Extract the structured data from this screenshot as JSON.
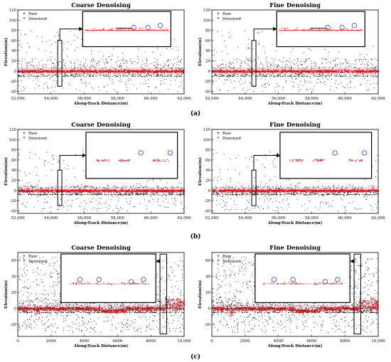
{
  "figure": {
    "panel_labels": [
      "(a)",
      "(b)",
      "(c)"
    ]
  },
  "colors": {
    "raw": "#000000",
    "denoised": "#e01010",
    "highlight": "#2a3bd6",
    "band": "#f6b3c8"
  },
  "chart_data": [
    {
      "id": "a-coarse",
      "type": "scatter",
      "title": "Coarse Denoising",
      "xlabel": "Along-Track Distance(m)",
      "ylabel": "Elevation(m)",
      "xlim": [
        52000,
        62000
      ],
      "ylim": [
        -45,
        120
      ],
      "xticks": [
        "52,000",
        "54,000",
        "56,000",
        "58,000",
        "60,000",
        "62,000"
      ],
      "yticks": [
        "-40",
        "-20",
        "0",
        "20",
        "40",
        "60",
        "80",
        "100",
        "120"
      ],
      "legend": [
        "Raw",
        "Denoised"
      ],
      "series": [
        {
          "name": "Raw",
          "noise_level": 0,
          "noise_range": [
            -40,
            80
          ],
          "dense_range": [
            -10,
            25
          ]
        },
        {
          "name": "Denoised",
          "level": 0
        }
      ]
    },
    {
      "id": "a-fine",
      "type": "scatter",
      "title": "Fine Denoising",
      "xlabel": "Along-Track Distance(m)",
      "ylabel": "Elevation(m)",
      "xlim": [
        52000,
        62000
      ],
      "ylim": [
        -45,
        120
      ],
      "xticks": [
        "52,000",
        "54,000",
        "56,000",
        "58,000",
        "60,000",
        "62,000"
      ],
      "yticks": [
        "-40",
        "-20",
        "0",
        "20",
        "40",
        "60",
        "80",
        "100",
        "120"
      ],
      "legend": [
        "Raw",
        "Denoised"
      ],
      "series": [
        {
          "name": "Raw",
          "noise_level": 0,
          "noise_range": [
            -40,
            80
          ],
          "dense_range": [
            -10,
            25
          ]
        },
        {
          "name": "Denoised",
          "level": 0
        }
      ]
    },
    {
      "id": "b-coarse",
      "type": "scatter",
      "title": "Coarse Denoising",
      "xlabel": "Along-Track Distance(m)",
      "ylabel": "Elevation(m)",
      "xlim": [
        52000,
        62000
      ],
      "ylim": [
        -45,
        120
      ],
      "xticks": [
        "52,000",
        "54,000",
        "56,000",
        "58,000",
        "60,000",
        "62,000"
      ],
      "yticks": [
        "-40",
        "-20",
        "0",
        "20",
        "40",
        "60",
        "80",
        "100",
        "120"
      ],
      "legend": [
        "Raw",
        "Denoised"
      ],
      "series": [
        {
          "name": "Raw",
          "noise_level": 0,
          "noise_range": [
            -40,
            80
          ],
          "dense_range": [
            -8,
            10
          ]
        },
        {
          "name": "Denoised",
          "level": 0
        }
      ]
    },
    {
      "id": "b-fine",
      "type": "scatter",
      "title": "Fine Denoising",
      "xlabel": "Along-Track Distance(m)",
      "ylabel": "Elevation(m)",
      "xlim": [
        52000,
        62000
      ],
      "ylim": [
        -45,
        120
      ],
      "xticks": [
        "52,000",
        "54,000",
        "56,000",
        "58,000",
        "60,000",
        "62,000"
      ],
      "yticks": [
        "-40",
        "-20",
        "0",
        "20",
        "40",
        "60",
        "80",
        "100",
        "120"
      ],
      "legend": [
        "Raw",
        "Denoised"
      ],
      "series": [
        {
          "name": "Raw",
          "noise_level": 0,
          "noise_range": [
            -40,
            80
          ],
          "dense_range": [
            -8,
            10
          ]
        },
        {
          "name": "Denoised",
          "level": 0
        }
      ]
    },
    {
      "id": "c-coarse",
      "type": "scatter",
      "title": "Coarse Denoising",
      "xlabel": "Along-Track Distance(m)",
      "ylabel": "Elevation(m)",
      "xlim": [
        0,
        10000
      ],
      "ylim": [
        -35,
        70
      ],
      "xticks": [
        "0",
        "2000",
        "4000",
        "6000",
        "8000",
        "10,000"
      ],
      "yticks": [
        "-20",
        "0",
        "20",
        "40",
        "60"
      ],
      "legend": [
        "Raw",
        "Denoised"
      ],
      "series": [
        {
          "name": "Raw",
          "noise_level": 0,
          "noise_range": [
            -30,
            65
          ],
          "dense_range": [
            -5,
            12
          ]
        },
        {
          "name": "Denoised",
          "level": 0
        }
      ]
    },
    {
      "id": "c-fine",
      "type": "scatter",
      "title": "Fine Denoising",
      "xlabel": "Along-Track Distance(m)",
      "ylabel": "Elevation(m)",
      "xlim": [
        0,
        10000
      ],
      "ylim": [
        -35,
        70
      ],
      "xticks": [
        "0",
        "2000",
        "4000",
        "6000",
        "8000",
        "10,000"
      ],
      "yticks": [
        "-20",
        "0",
        "20",
        "40",
        "60"
      ],
      "legend": [
        "Raw",
        "Denoised"
      ],
      "series": [
        {
          "name": "Raw",
          "noise_level": 0,
          "noise_range": [
            -30,
            65
          ],
          "dense_range": [
            -5,
            12
          ]
        },
        {
          "name": "Denoised",
          "level": 0
        }
      ]
    }
  ]
}
